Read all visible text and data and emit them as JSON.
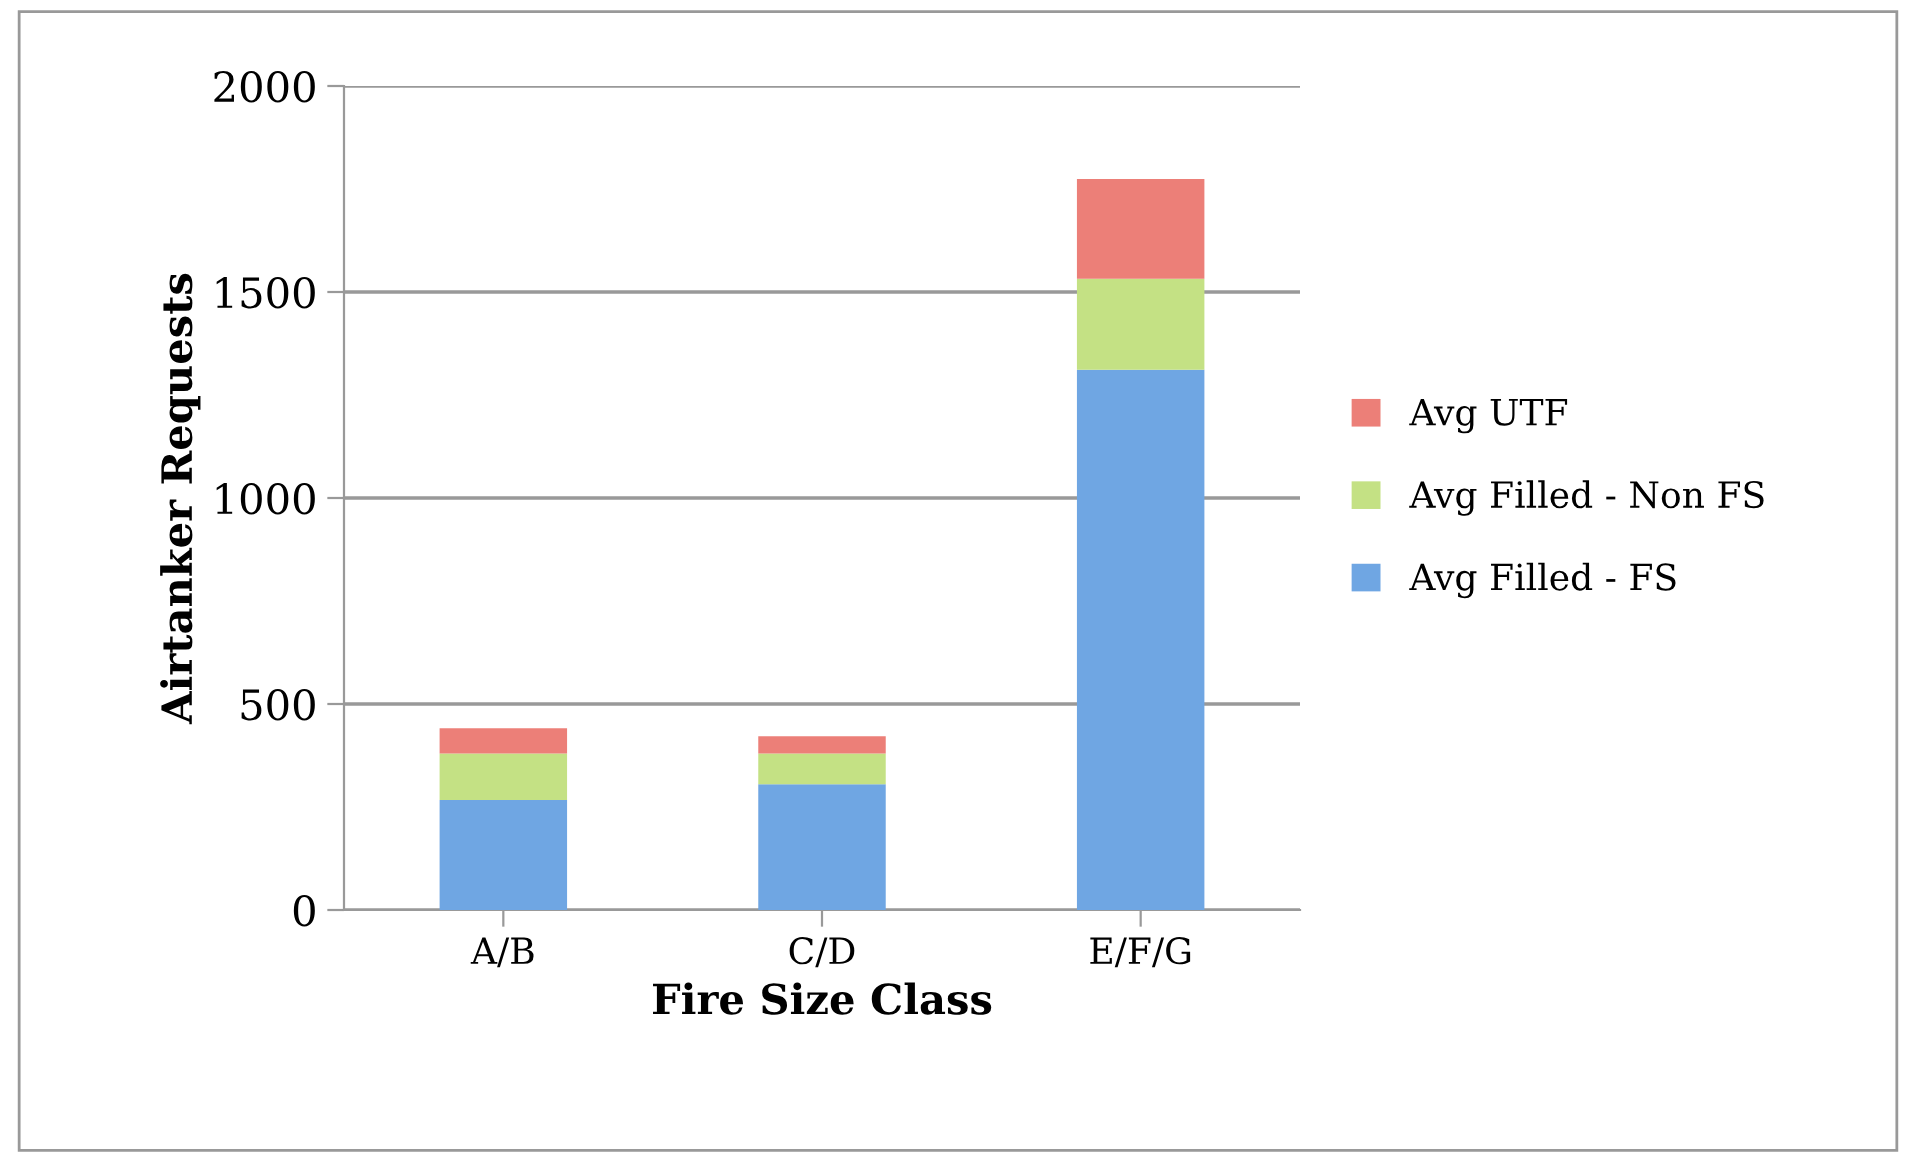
{
  "chart_data": {
    "type": "bar",
    "stacked": true,
    "xlabel": "Fire Size Class",
    "ylabel": "Airtanker Requests",
    "categories": [
      "A/B",
      "C/D",
      "E/F/G"
    ],
    "series": [
      {
        "name": "Avg Filled - FS",
        "color": "#6fa6e3",
        "values": [
          267,
          305,
          1311
        ]
      },
      {
        "name": "Avg Filled - Non FS",
        "color": "#c4e184",
        "values": [
          113,
          75,
          221
        ]
      },
      {
        "name": "Avg UTF",
        "color": "#ec7f78",
        "values": [
          61,
          42,
          242
        ]
      }
    ],
    "ylim": [
      0,
      2000
    ],
    "yticks": [
      0,
      500,
      1000,
      1500,
      2000
    ],
    "grid": "y",
    "legend": "right"
  }
}
